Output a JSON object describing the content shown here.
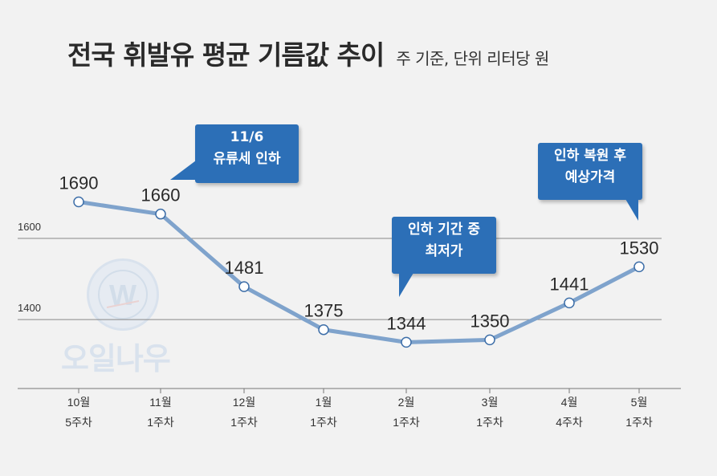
{
  "title": "전국 휘발유 평균 기름값 추이",
  "subtitle": "주 기준, 단위 리터당 원",
  "watermark": {
    "logo_letter": "W",
    "brand": "오일나우"
  },
  "callouts": [
    {
      "lines": [
        "11/6",
        "유류세 인하"
      ]
    },
    {
      "lines": [
        "인하 기간 중",
        "최저가"
      ]
    },
    {
      "lines": [
        "인하 복원 후",
        "예상가격"
      ]
    }
  ],
  "colors": {
    "line": "#7fa3cc",
    "marker_fill": "#ffffff",
    "marker_stroke": "#3d6ea8",
    "callout": "#2c6fb7",
    "grid": "#888888",
    "background": "#f2f2f2"
  },
  "chart_data": {
    "type": "line",
    "title": "전국 휘발유 평균 기름값 추이",
    "subtitle": "주 기준, 단위 리터당 원",
    "categories": [
      [
        "10월",
        "5주차"
      ],
      [
        "11월",
        "1주차"
      ],
      [
        "12월",
        "1주차"
      ],
      [
        "1월",
        "1주차"
      ],
      [
        "2월",
        "1주차"
      ],
      [
        "3월",
        "1주차"
      ],
      [
        "4월",
        "4주차"
      ],
      [
        "5월",
        "1주차"
      ]
    ],
    "values": [
      1690,
      1660,
      1481,
      1375,
      1344,
      1350,
      1441,
      1530
    ],
    "data_labels": [
      "1690",
      "1660",
      "1481",
      "1375",
      "1344",
      "1350",
      "1441",
      "1530"
    ],
    "y_ticks": [
      1400,
      1600
    ],
    "y_tick_labels": [
      "1400",
      "1600"
    ],
    "ylim": [
      1230,
      1800
    ],
    "grid": true,
    "legend": "none"
  }
}
